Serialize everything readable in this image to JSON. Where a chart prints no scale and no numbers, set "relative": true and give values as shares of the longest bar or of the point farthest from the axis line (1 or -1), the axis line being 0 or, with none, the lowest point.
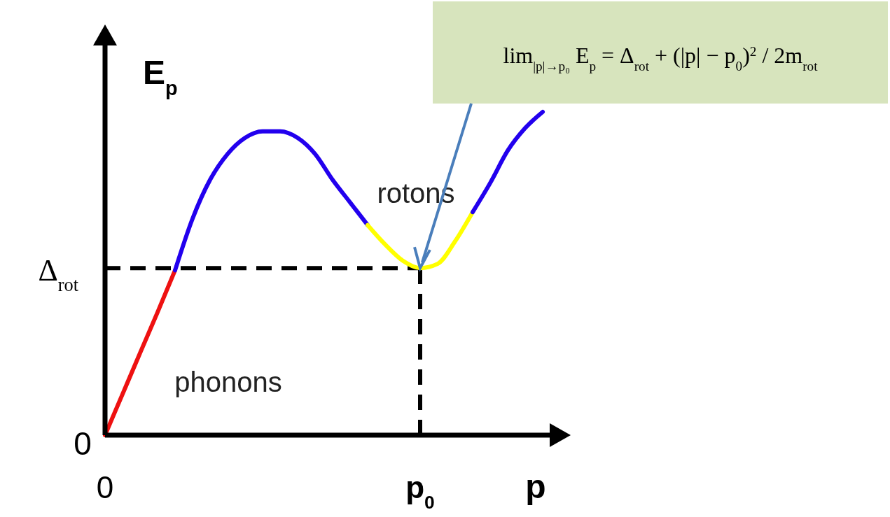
{
  "chart_data": {
    "type": "line",
    "relative": true,
    "xlabel": "p",
    "ylabel": "E$_{p}$",
    "categories": [
      "0",
      null,
      null,
      null,
      null,
      null,
      null,
      null,
      null,
      null,
      null,
      null,
      null,
      null,
      null,
      null,
      null,
      null,
      "p$_{0}$",
      null,
      null,
      null,
      null,
      null,
      null,
      null
    ],
    "series": [
      {
        "color": "#ee1111",
        "values": [
          0,
          0.127,
          0.254,
          0.38,
          0.51,
          null,
          null,
          null,
          null,
          null,
          null,
          null,
          null,
          null,
          null,
          null,
          null,
          null,
          null,
          null,
          null,
          null,
          null,
          null,
          null,
          null
        ]
      },
      {
        "color": "#2200ee",
        "values": [
          null,
          null,
          null,
          null,
          0.51,
          0.67,
          0.79,
          0.87,
          0.92,
          0.94,
          0.94,
          0.92,
          0.87,
          0.79,
          0.72,
          0.65,
          null,
          null,
          null,
          null,
          null,
          null,
          null,
          null,
          null,
          null
        ]
      },
      {
        "color": "#ffff00",
        "values": [
          null,
          null,
          null,
          null,
          null,
          null,
          null,
          null,
          null,
          null,
          null,
          null,
          null,
          null,
          null,
          0.65,
          0.59,
          0.54,
          0.517,
          0.53,
          0.6,
          0.69,
          null,
          null,
          null,
          null
        ]
      },
      {
        "color": "#2200ee",
        "values": [
          null,
          null,
          null,
          null,
          null,
          null,
          null,
          null,
          null,
          null,
          null,
          null,
          null,
          null,
          null,
          null,
          null,
          null,
          null,
          null,
          null,
          0.69,
          0.78,
          0.88,
          0.95,
          1
        ]
      }
    ],
    "ref_lines": [
      {
        "axis": "y",
        "value": 0.517,
        "label": "Δ$_{rot}$",
        "color": "#000000",
        "line_style": "dashed"
      },
      {
        "axis": "x",
        "value": "p$_{0}$",
        "color": "#000000",
        "line_style": "dashed"
      }
    ],
    "annotations": [
      "rotons",
      "phonons",
      "lim$_{|p|→p₀}$ E$_{p}$ = Δ$_{rot}$ + (|p| − p$_{0}$)$^{2}$ / 2m$_{rot}$",
      "0"
    ]
  }
}
